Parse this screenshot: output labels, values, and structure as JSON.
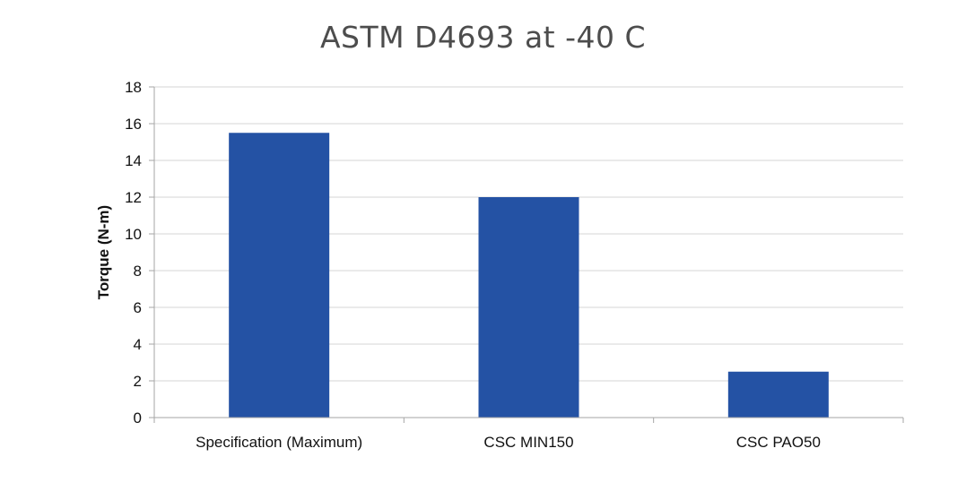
{
  "chart_data": {
    "type": "bar",
    "title": "ASTM D4693 at -40 C",
    "xlabel": "",
    "ylabel": "Torque (N-m)",
    "categories": [
      "Specification (Maximum)",
      "CSC MIN150",
      "CSC PAO50"
    ],
    "values": [
      15.5,
      12,
      2.5
    ],
    "ylim": [
      0,
      18
    ],
    "yticks": [
      0,
      2,
      4,
      6,
      8,
      10,
      12,
      14,
      16,
      18
    ],
    "grid": true,
    "legend": "none"
  },
  "colors": {
    "bar": "#2452a4",
    "grid": "#d4d4d4",
    "axis": "#a6a6a6",
    "title": "#4d4d4d"
  }
}
